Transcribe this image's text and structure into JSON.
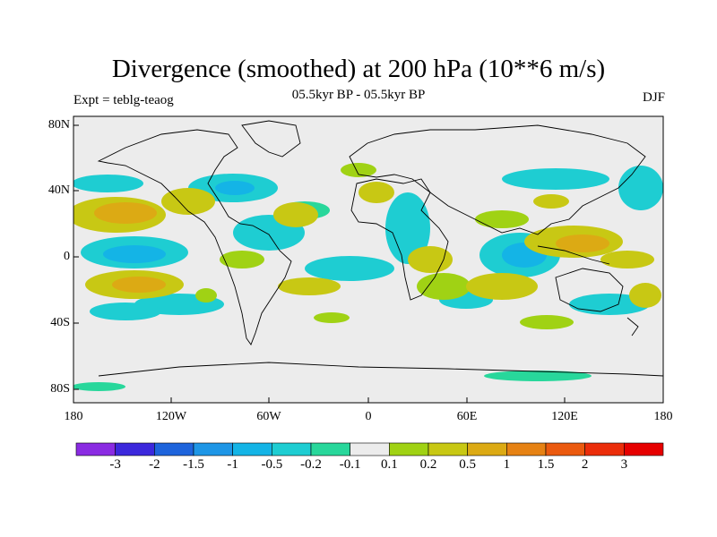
{
  "title": "Divergence (smoothed) at 200 hPa (10**6 m/s)",
  "subtitle": "05.5kyr BP - 05.5kyr BP",
  "left_label": "Expt = teblg-teaog",
  "right_label": "DJF",
  "lat_labels": [
    "80N",
    "40N",
    "0",
    "40S",
    "80S"
  ],
  "lon_labels": [
    "180",
    "120W",
    "60W",
    "0",
    "60E",
    "120E",
    "180"
  ],
  "colorbar": {
    "labels": [
      "-3",
      "-2",
      "-1.5",
      "-1",
      "-0.5",
      "-0.2",
      "-0.1",
      "0.1",
      "0.2",
      "0.5",
      "1",
      "1.5",
      "2",
      "3"
    ],
    "colors": [
      "#8a2be2",
      "#3c28dc",
      "#1e64dc",
      "#1e96e6",
      "#14b4e6",
      "#1ecdd2",
      "#28d79b",
      "#ececec",
      "#a0d214",
      "#c8c814",
      "#dcaa14",
      "#e68214",
      "#eb5a0f",
      "#eb2d0a",
      "#e60000"
    ]
  },
  "colors": {
    "land_bg": "#ececec",
    "coast": "#000000"
  }
}
